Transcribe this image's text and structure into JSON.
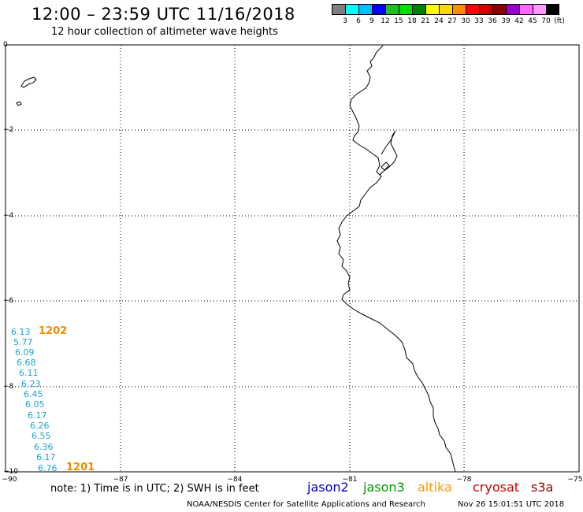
{
  "title": "12:00 – 23:59 UTC 11/16/2018",
  "subtitle": "12 hour collection of altimeter wave heights",
  "scale": {
    "unit": "(ft)",
    "colors": [
      "#7f7f7f",
      "#00ffff",
      "#00bfff",
      "#0000ff",
      "#1fbf1f",
      "#00e000",
      "#008000",
      "#ffff00",
      "#ffd700",
      "#ff8c00",
      "#ff0000",
      "#cc0000",
      "#8b0000",
      "#9900cc",
      "#ff66ff",
      "#ff99ff",
      "#000000"
    ],
    "labels": [
      "3",
      "6",
      "9",
      "12",
      "15",
      "18",
      "21",
      "24",
      "27",
      "30",
      "33",
      "36",
      "39",
      "42",
      "45",
      "70"
    ]
  },
  "axes": {
    "y_labels": [
      "0",
      "−2",
      "−4",
      "−6",
      "−8",
      "−10"
    ],
    "x_labels": [
      "−90",
      "−87",
      "−84",
      "−81",
      "−78",
      "−75"
    ]
  },
  "wave_heights": [
    "6.13",
    "5.77",
    "6.09",
    "6.68",
    "6.11",
    "6.23",
    "6.45",
    "6.05",
    "6.17",
    "6.26",
    "6.55",
    "6.36",
    "6.17",
    "6.76"
  ],
  "pass_labels": [
    "1202",
    "1201"
  ],
  "footer": {
    "note": "note: 1) Time is in UTC; 2) SWH is in feet",
    "satellites": [
      {
        "name": "jason2",
        "color": "#0000cc"
      },
      {
        "name": "jason3",
        "color": "#009900"
      },
      {
        "name": "altika",
        "color": "#ff9900"
      },
      {
        "name": "cryosat",
        "color": "#cc0000"
      },
      {
        "name": "s3a",
        "color": "#8b0000"
      }
    ],
    "credit": "NOAA/NESDIS Center for Satellite Applications and Research",
    "generated": "Nov 26 15:01:51 UTC 2018"
  }
}
